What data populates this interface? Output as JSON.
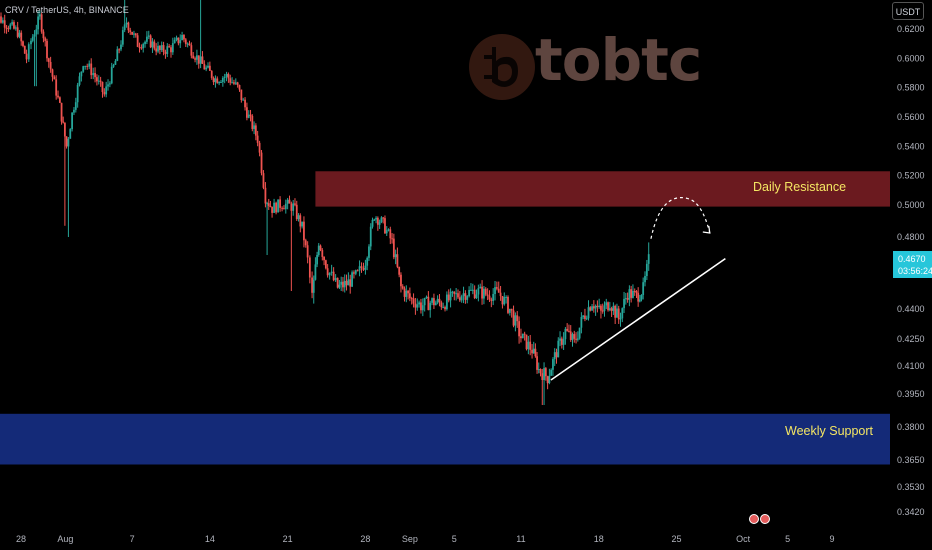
{
  "symbol_text": "CRV / TetherUS, 4h, BINANCE",
  "currency": "USDT",
  "watermark": "tobtc",
  "last_price": "0.4670",
  "countdown": "03:56:24",
  "colors": {
    "up": "#26a69a",
    "down": "#ef5350",
    "resistance": "#6b1a1f",
    "support": "#142a78",
    "price_tag": "#26c6da",
    "zone_label": "#f5e663"
  },
  "chart_data": {
    "type": "candlestick",
    "ylim": [
      0.339,
      0.633
    ],
    "ylabel_ticks": [
      "0.6200",
      "0.6000",
      "0.5800",
      "0.5600",
      "0.5400",
      "0.5200",
      "0.5000",
      "0.4800",
      "0.4400",
      "0.4250",
      "0.4100",
      "0.3950",
      "0.3800",
      "0.3650",
      "0.3530",
      "0.3420"
    ],
    "xlabel_ticks": [
      {
        "label": "28",
        "day": 0
      },
      {
        "label": "Aug",
        "day": 4
      },
      {
        "label": "7",
        "day": 10
      },
      {
        "label": "14",
        "day": 17
      },
      {
        "label": "21",
        "day": 24
      },
      {
        "label": "28",
        "day": 31
      },
      {
        "label": "Sep",
        "day": 35
      },
      {
        "label": "5",
        "day": 39
      },
      {
        "label": "11",
        "day": 45
      },
      {
        "label": "18",
        "day": 52
      },
      {
        "label": "25",
        "day": 59
      },
      {
        "label": "Oct",
        "day": 65
      },
      {
        "label": "5",
        "day": 69
      },
      {
        "label": "9",
        "day": 73
      }
    ],
    "zones": [
      {
        "label": "Daily Resistance",
        "low": 0.499,
        "high": 0.523,
        "start_day": 26.5
      },
      {
        "label": "Weekly Support",
        "low": 0.363,
        "high": 0.386,
        "start_day": -2
      }
    ],
    "trendline": {
      "start_day": 47.7,
      "start": 0.4025,
      "end_day": 63.4,
      "end": 0.468
    },
    "projection": {
      "start_day": 56.7,
      "start": 0.479,
      "peak_day": 60.0,
      "peak": 0.501,
      "end_day": 62.0,
      "end": 0.4825
    },
    "anchors": [
      {
        "day": -2.8,
        "price": 0.632
      },
      {
        "day": -0.3,
        "price": 0.618
      },
      {
        "day": 0.5,
        "price": 0.6
      },
      {
        "day": 0.9,
        "price": 0.612
      },
      {
        "day": 1.7,
        "price": 0.628
      },
      {
        "day": 2.5,
        "price": 0.598
      },
      {
        "day": 3.5,
        "price": 0.567
      },
      {
        "day": 4.1,
        "price": 0.54
      },
      {
        "day": 4.6,
        "price": 0.562
      },
      {
        "day": 5.6,
        "price": 0.598
      },
      {
        "day": 6.5,
        "price": 0.59
      },
      {
        "day": 7.5,
        "price": 0.575
      },
      {
        "day": 8.5,
        "price": 0.598
      },
      {
        "day": 9.5,
        "price": 0.625
      },
      {
        "day": 10.5,
        "price": 0.61
      },
      {
        "day": 11.5,
        "price": 0.612
      },
      {
        "day": 12.5,
        "price": 0.605
      },
      {
        "day": 13.5,
        "price": 0.607
      },
      {
        "day": 14.5,
        "price": 0.615
      },
      {
        "day": 15.5,
        "price": 0.604
      },
      {
        "day": 16.5,
        "price": 0.594
      },
      {
        "day": 17.5,
        "price": 0.586
      },
      {
        "day": 18.5,
        "price": 0.588
      },
      {
        "day": 19.5,
        "price": 0.58
      },
      {
        "day": 20.5,
        "price": 0.56
      },
      {
        "day": 21.3,
        "price": 0.545
      },
      {
        "day": 22.0,
        "price": 0.505
      },
      {
        "day": 22.6,
        "price": 0.498
      },
      {
        "day": 23.5,
        "price": 0.501
      },
      {
        "day": 24.5,
        "price": 0.499
      },
      {
        "day": 25.3,
        "price": 0.486
      },
      {
        "day": 25.8,
        "price": 0.467
      },
      {
        "day": 26.2,
        "price": 0.447
      },
      {
        "day": 26.8,
        "price": 0.478
      },
      {
        "day": 27.6,
        "price": 0.462
      },
      {
        "day": 28.5,
        "price": 0.452
      },
      {
        "day": 29.3,
        "price": 0.454
      },
      {
        "day": 30.3,
        "price": 0.459
      },
      {
        "day": 31.0,
        "price": 0.467
      },
      {
        "day": 31.8,
        "price": 0.494
      },
      {
        "day": 32.6,
        "price": 0.488
      },
      {
        "day": 33.4,
        "price": 0.477
      },
      {
        "day": 34.2,
        "price": 0.452
      },
      {
        "day": 35.0,
        "price": 0.446
      },
      {
        "day": 36.0,
        "price": 0.442
      },
      {
        "day": 37.0,
        "price": 0.444
      },
      {
        "day": 38.0,
        "price": 0.443
      },
      {
        "day": 39.0,
        "price": 0.447
      },
      {
        "day": 40.0,
        "price": 0.449
      },
      {
        "day": 41.0,
        "price": 0.45
      },
      {
        "day": 42.0,
        "price": 0.448
      },
      {
        "day": 43.0,
        "price": 0.449
      },
      {
        "day": 44.0,
        "price": 0.44
      },
      {
        "day": 45.0,
        "price": 0.426
      },
      {
        "day": 46.0,
        "price": 0.419
      },
      {
        "day": 46.6,
        "price": 0.408
      },
      {
        "day": 47.4,
        "price": 0.404
      },
      {
        "day": 48.2,
        "price": 0.418
      },
      {
        "day": 49.0,
        "price": 0.429
      },
      {
        "day": 49.8,
        "price": 0.423
      },
      {
        "day": 50.6,
        "price": 0.436
      },
      {
        "day": 51.4,
        "price": 0.444
      },
      {
        "day": 52.2,
        "price": 0.438
      },
      {
        "day": 53.0,
        "price": 0.444
      },
      {
        "day": 53.8,
        "price": 0.435
      },
      {
        "day": 54.6,
        "price": 0.449
      },
      {
        "day": 55.4,
        "price": 0.447
      },
      {
        "day": 56.0,
        "price": 0.451
      },
      {
        "day": 56.5,
        "price": 0.467
      }
    ],
    "spikes": [
      {
        "day": 1.3,
        "low": 0.581
      },
      {
        "day": 3.9,
        "low": 0.487
      },
      {
        "day": 4.3,
        "low": 0.48
      },
      {
        "day": 9.3,
        "high": 0.648
      },
      {
        "day": 16.2,
        "high": 0.646
      },
      {
        "day": 22.1,
        "low": 0.47
      },
      {
        "day": 24.3,
        "low": 0.45
      },
      {
        "day": 26.4,
        "low": 0.443
      },
      {
        "day": 47.0,
        "low": 0.39
      },
      {
        "day": 56.5,
        "high": 0.477
      }
    ]
  }
}
